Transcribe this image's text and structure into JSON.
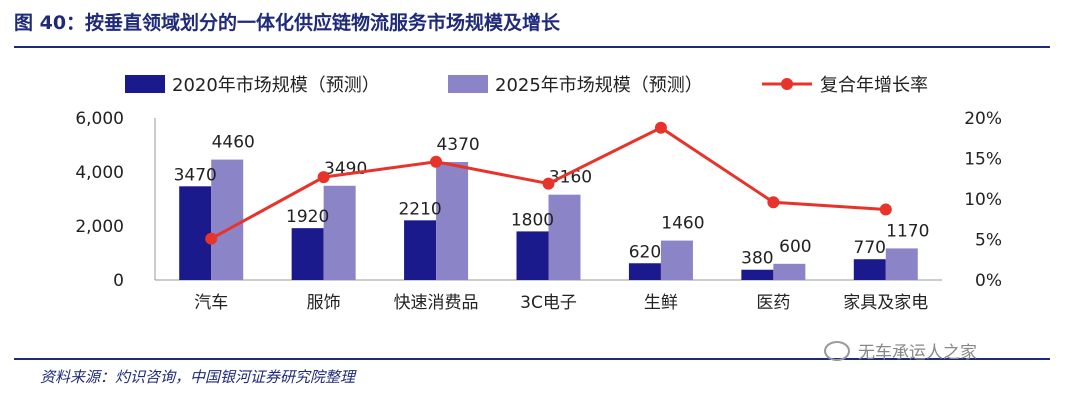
{
  "title": "图 40：按垂直领域划分的一体化供应链物流服务市场规模及增长",
  "source": "资料来源：灼识咨询，中国银河证券研究院整理",
  "watermark": "无车承运人之家",
  "colors": {
    "title": "#1f2a7a",
    "s2020": "#1a1a8c",
    "s2025": "#8b85c8",
    "growth": "#e8332a"
  },
  "chart_data": {
    "type": "bar",
    "categories": [
      "汽车",
      "服饰",
      "快速消费品",
      "3C电子",
      "生鲜",
      "医药",
      "家具及家电"
    ],
    "series": [
      {
        "name": "2020年市场规模（预测）",
        "type": "bar",
        "axis": "left",
        "values": [
          3470,
          1920,
          2210,
          1800,
          620,
          380,
          770
        ]
      },
      {
        "name": "2025年市场规模（预测）",
        "type": "bar",
        "axis": "left",
        "values": [
          4460,
          3490,
          4370,
          3160,
          1460,
          600,
          1170
        ]
      },
      {
        "name": "复合年增长率",
        "type": "line",
        "axis": "right",
        "values": [
          5.1,
          12.7,
          14.6,
          11.9,
          18.8,
          9.6,
          8.7
        ]
      }
    ],
    "data_labels_2020": [
      "3470",
      "1920",
      "2210",
      "1800",
      "620",
      "380",
      "770"
    ],
    "data_labels_2025": [
      "4460",
      "3490",
      "4370",
      "3160",
      "1460",
      "600",
      "1170"
    ],
    "y_left": {
      "min": 0,
      "max": 6000,
      "ticks": [
        "0",
        "2,000",
        "4,000",
        "6,000"
      ]
    },
    "y_right": {
      "min": 0,
      "max": 20,
      "ticks": [
        "0%",
        "5%",
        "10%",
        "15%",
        "20%"
      ]
    },
    "legend_position": "top",
    "grid": false
  }
}
